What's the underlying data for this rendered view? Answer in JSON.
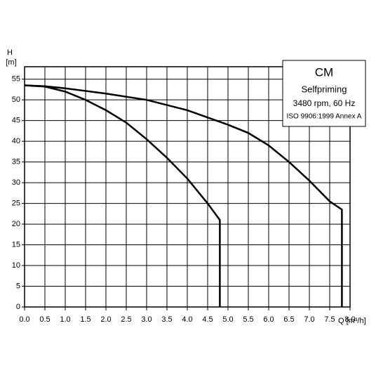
{
  "chart_data": {
    "type": "line",
    "title": "CM",
    "subtitle": "Selfpriming",
    "speed": "3480 rpm, 60 Hz",
    "standard": "ISO 9906:1999 Annex A",
    "y_label": "H",
    "y_unit": "[m]",
    "x_label": "Q [m³/h]",
    "series": [
      {
        "color": "#000000",
        "x": [
          0,
          0.5,
          1,
          1.5,
          2,
          2.5,
          3,
          3.5,
          4,
          4.5,
          4.8,
          4.8
        ],
        "values": [
          53.5,
          53.2,
          52,
          50,
          47.5,
          44.5,
          40.5,
          36,
          31,
          25,
          21,
          0
        ]
      },
      {
        "color": "#000000",
        "x": [
          0,
          0.5,
          1,
          2,
          3,
          4,
          5,
          5.5,
          6,
          6.5,
          7,
          7.5,
          7.8,
          7.8
        ],
        "values": [
          53.5,
          53.3,
          52.8,
          51.5,
          50,
          47.5,
          44,
          42,
          39,
          35,
          30.5,
          25.5,
          23.5,
          0
        ]
      }
    ],
    "xlim": [
      0,
      8
    ],
    "ylim": [
      0,
      58
    ],
    "xticks": [
      {
        "value": 0,
        "label": "0.0"
      },
      0.5,
      {
        "value": 1,
        "label": "1.0"
      },
      1.5,
      {
        "value": 2,
        "label": "2.0"
      },
      2.5,
      {
        "value": 3,
        "label": "3.0"
      },
      3.5,
      {
        "value": 4,
        "label": "4.0"
      },
      4.5,
      {
        "value": 5,
        "label": "5.0"
      },
      5.5,
      {
        "value": 6,
        "label": "6.0"
      },
      6.5,
      {
        "value": 7,
        "label": "7.0"
      },
      7.5,
      {
        "value": 8,
        "label": "8.0"
      }
    ],
    "yticks": [
      0,
      5,
      10,
      15,
      20,
      25,
      30,
      35,
      40,
      45,
      50,
      55
    ],
    "grid": true
  }
}
